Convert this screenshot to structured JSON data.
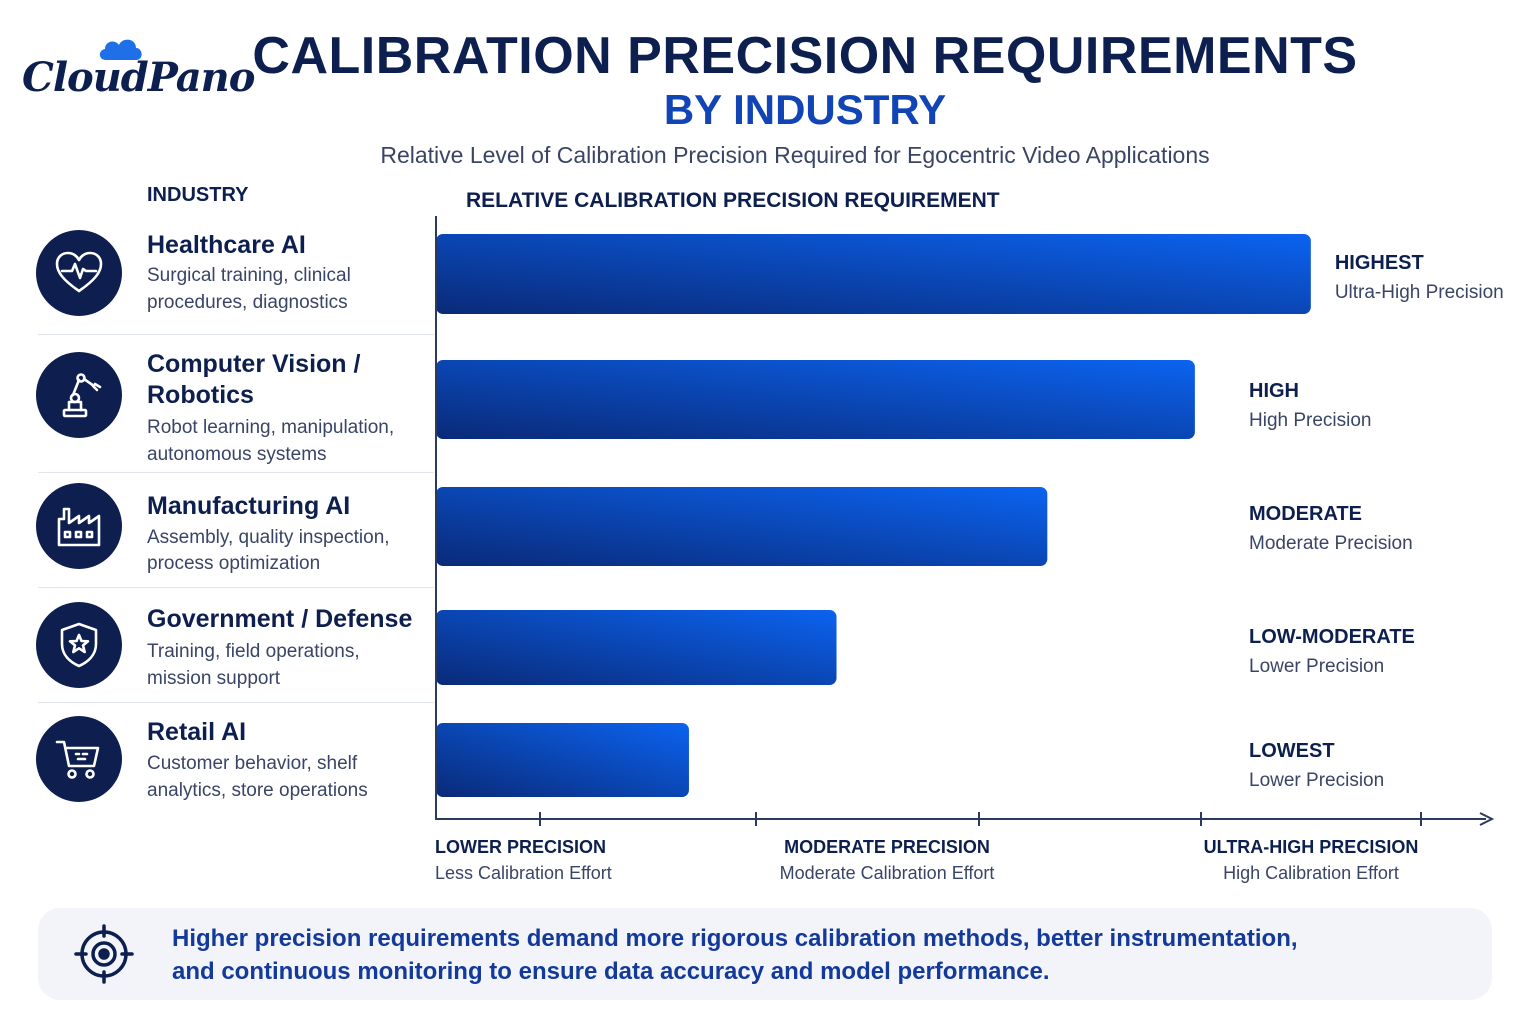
{
  "brand": {
    "logo_text": "CloudPano"
  },
  "header": {
    "title_line1": "CALIBRATION PRECISION REQUIREMENTS",
    "title_line2": "BY INDUSTRY",
    "subtitle": "Relative Level of Calibration Precision Required for Egocentric Video Applications"
  },
  "columns": {
    "industry": "INDUSTRY",
    "requirement": "RELATIVE CALIBRATION PRECISION REQUIREMENT"
  },
  "industries": [
    {
      "name": "Healthcare AI",
      "desc_line1": "Surgical training, clinical",
      "desc_line2": "procedures, diagnostics",
      "icon": "heartbeat-icon"
    },
    {
      "name_line1": "Computer Vision /",
      "name_line2": "Robotics",
      "desc_line1": "Robot learning, manipulation,",
      "desc_line2": "autonomous systems",
      "icon": "robot-arm-icon"
    },
    {
      "name": "Manufacturing AI",
      "desc_line1": "Assembly, quality inspection,",
      "desc_line2": "process optimization",
      "icon": "factory-icon"
    },
    {
      "name": "Government / Defense",
      "desc_line1": "Training, field operations,",
      "desc_line2": "mission support",
      "icon": "shield-star-icon"
    },
    {
      "name": "Retail AI",
      "desc_line1": "Customer behavior, shelf",
      "desc_line2": "analytics, store operations",
      "icon": "shopping-cart-icon"
    }
  ],
  "chart_data": {
    "type": "bar",
    "orientation": "horizontal",
    "categories": [
      "Healthcare AI",
      "Computer Vision / Robotics",
      "Manufacturing AI",
      "Government / Defense",
      "Retail AI"
    ],
    "values": [
      0.83,
      0.72,
      0.58,
      0.38,
      0.24
    ],
    "xlim": [
      0,
      1
    ],
    "level_labels": [
      "HIGHEST",
      "HIGH",
      "MODERATE",
      "LOW-MODERATE",
      "LOWEST"
    ],
    "level_sublabels": [
      "Ultra-High Precision",
      "High Precision",
      "Moderate Precision",
      "Lower Precision",
      "Lower Precision"
    ],
    "axis_labels": [
      {
        "title": "LOWER PRECISION",
        "sub": "Less Calibration Effort"
      },
      {
        "title": "MODERATE PRECISION",
        "sub": "Moderate Calibration Effort"
      },
      {
        "title": "ULTRA-HIGH PRECISION",
        "sub": "High Calibration Effort"
      }
    ],
    "grid": false,
    "colors": {
      "bar_start": "#0a2a78",
      "bar_end": "#0b63f0",
      "axis": "#2b3a5e"
    }
  },
  "footer": {
    "line1": "Higher precision requirements demand more rigorous calibration methods, better instrumentation,",
    "line2": "and continuous monitoring to ensure data accuracy and model performance.",
    "icon": "target-icon"
  }
}
